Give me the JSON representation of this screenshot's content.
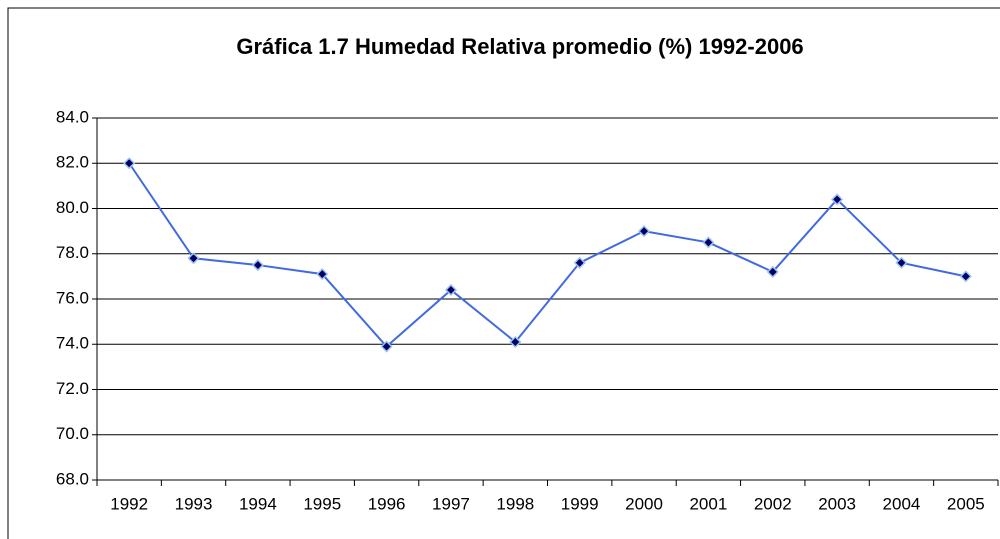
{
  "chart_data": {
    "type": "line",
    "title": "Gráfica 1.7 Humedad Relativa promedio (%) 1992-2006",
    "categories": [
      "1992",
      "1993",
      "1994",
      "1995",
      "1996",
      "1997",
      "1998",
      "1999",
      "2000",
      "2001",
      "2002",
      "2003",
      "2004",
      "2005"
    ],
    "values": [
      82.0,
      77.8,
      77.5,
      77.1,
      73.9,
      76.4,
      74.1,
      77.6,
      79.0,
      78.5,
      77.2,
      80.4,
      77.6,
      77.0
    ],
    "color": "#4169e1",
    "marker_color": "#000066",
    "ylim": [
      68,
      84
    ],
    "yticks": [
      {
        "value": 68,
        "label": "68.0"
      },
      {
        "value": 70,
        "label": "70.0"
      },
      {
        "value": 72,
        "label": "72.0"
      },
      {
        "value": 74,
        "label": "74.0"
      },
      {
        "value": 76,
        "label": "76.0"
      },
      {
        "value": 78,
        "label": "78.0"
      },
      {
        "value": 80,
        "label": "80.0"
      },
      {
        "value": 82,
        "label": "82.0"
      },
      {
        "value": 84,
        "label": "84.0"
      }
    ],
    "grid": true
  }
}
